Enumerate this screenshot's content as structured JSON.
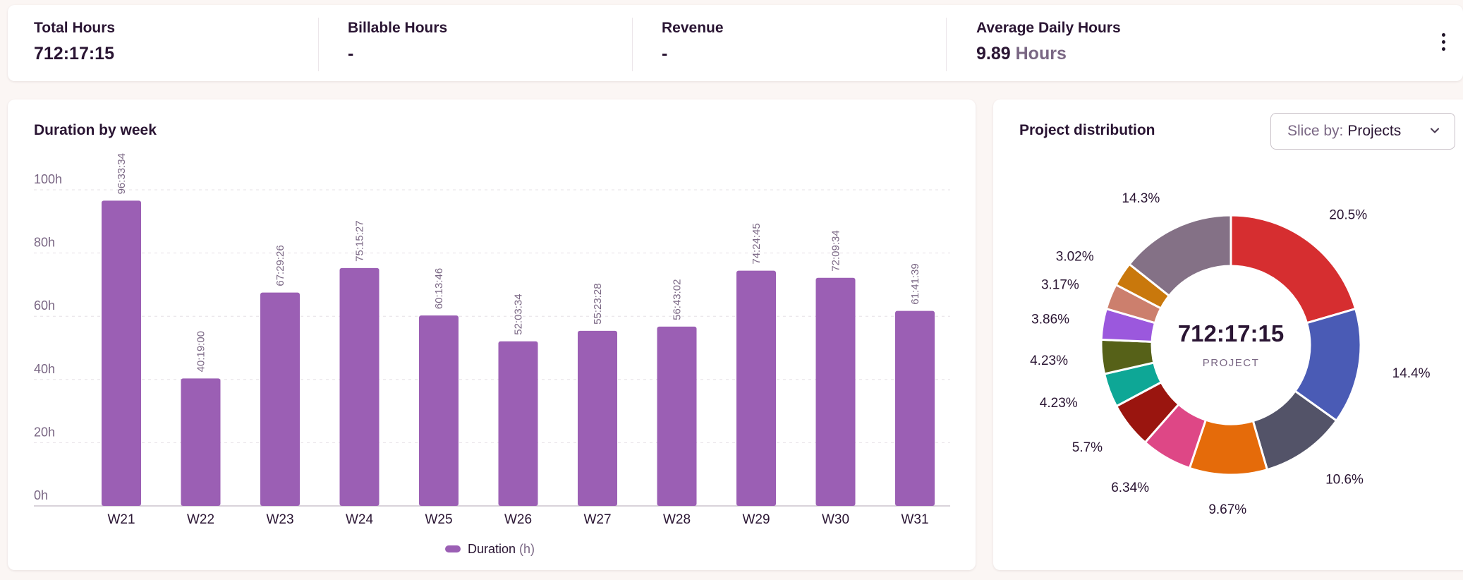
{
  "stats": [
    {
      "label": "Total Hours",
      "value": "712:17:15",
      "unit": ""
    },
    {
      "label": "Billable Hours",
      "value": "-",
      "unit": ""
    },
    {
      "label": "Revenue",
      "value": "-",
      "unit": ""
    },
    {
      "label": "Average Daily Hours",
      "value": "9.89",
      "unit": "Hours"
    }
  ],
  "more_icon": "more-vertical-icon",
  "duration_card": {
    "title": "Duration by week",
    "legend": {
      "label": "Duration",
      "unit": "(h)"
    }
  },
  "distribution_card": {
    "title": "Project distribution",
    "slice_prefix": "Slice by:",
    "slice_value": "Projects",
    "center_value": "712:17:15",
    "center_label": "PROJECT"
  },
  "colors": {
    "bar": "#9b5fb4",
    "text_dark": "#2a1533",
    "text_muted": "#7a6784",
    "grid": "#e6e0e6",
    "axis": "#d9d3da"
  },
  "chart_data": [
    {
      "type": "bar",
      "title": "Duration by week",
      "categories": [
        "W21",
        "W22",
        "W23",
        "W24",
        "W25",
        "W26",
        "W27",
        "W28",
        "W29",
        "W30",
        "W31"
      ],
      "series": [
        {
          "name": "Duration (h)",
          "values": [
            96.56,
            40.32,
            67.49,
            75.26,
            60.23,
            52.06,
            55.39,
            56.72,
            74.41,
            72.16,
            61.69
          ],
          "labels": [
            "96:33:34",
            "40:19:00",
            "67:29:26",
            "75:15:27",
            "60:13:46",
            "52:03:34",
            "55:23:28",
            "56:43:02",
            "74:24:45",
            "72:09:34",
            "61:41:39"
          ]
        }
      ],
      "y_ticks": [
        "0h",
        "20h",
        "40h",
        "60h",
        "80h",
        "100h"
      ],
      "ylim": [
        0,
        100
      ],
      "grid": true,
      "legend": "bottom-center"
    },
    {
      "type": "pie",
      "title": "Project distribution",
      "slices": [
        {
          "label": "20.5%",
          "value": 20.5,
          "color": "#d62e30"
        },
        {
          "label": "14.4%",
          "value": 14.4,
          "color": "#4a5bb5"
        },
        {
          "label": "10.6%",
          "value": 10.6,
          "color": "#535368"
        },
        {
          "label": "9.67%",
          "value": 9.67,
          "color": "#e56b0a"
        },
        {
          "label": "6.34%",
          "value": 6.34,
          "color": "#de4786"
        },
        {
          "label": "5.7%",
          "value": 5.7,
          "color": "#9a150f"
        },
        {
          "label": "4.23%",
          "value": 4.23,
          "color": "#0ea796"
        },
        {
          "label": "4.23%",
          "value": 4.23,
          "color": "#566118"
        },
        {
          "label": "3.86%",
          "value": 3.86,
          "color": "#9b58dd"
        },
        {
          "label": "3.17%",
          "value": 3.17,
          "color": "#cc7f6d"
        },
        {
          "label": "3.02%",
          "value": 3.02,
          "color": "#c9780c"
        },
        {
          "label": "14.3%",
          "value": 14.3,
          "color": "#847186"
        }
      ],
      "legend": "none"
    }
  ]
}
